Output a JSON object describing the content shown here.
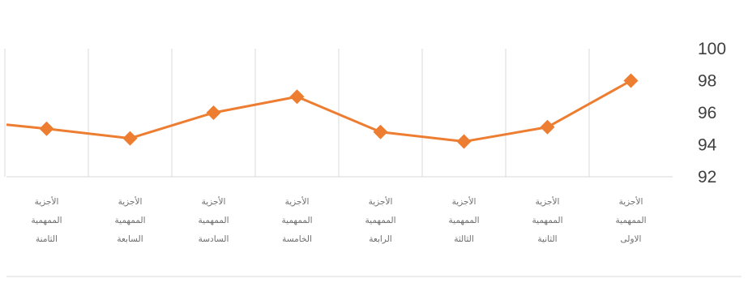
{
  "chart_data": {
    "type": "line",
    "title": "",
    "categories": [
      [
        "الأجزية",
        "الممهمية",
        "الاولى"
      ],
      [
        "الأجزية",
        "الممهمية",
        "الثانية"
      ],
      [
        "الأجزية",
        "الممهمية",
        "الثالثة"
      ],
      [
        "الأجزية",
        "الممهمية",
        "الرابعة"
      ],
      [
        "الأجزية",
        "الممهمية",
        "الخامسة"
      ],
      [
        "الأجزية",
        "الممهمية",
        "السادسة"
      ],
      [
        "الأجزية",
        "الممهمية",
        "السابعة"
      ],
      [
        "الأجزية",
        "الممهمية",
        "الثامنة"
      ]
    ],
    "values": [
      98,
      95.1,
      94.2,
      94.8,
      97,
      96,
      94.4,
      95
    ],
    "y_ticks": [
      "100",
      "98",
      "96",
      "94",
      "92"
    ],
    "ylim": [
      92,
      100
    ],
    "x_reversed": true,
    "y_axis_side": "right",
    "grid": "vertical",
    "color": "#ED7D31"
  }
}
